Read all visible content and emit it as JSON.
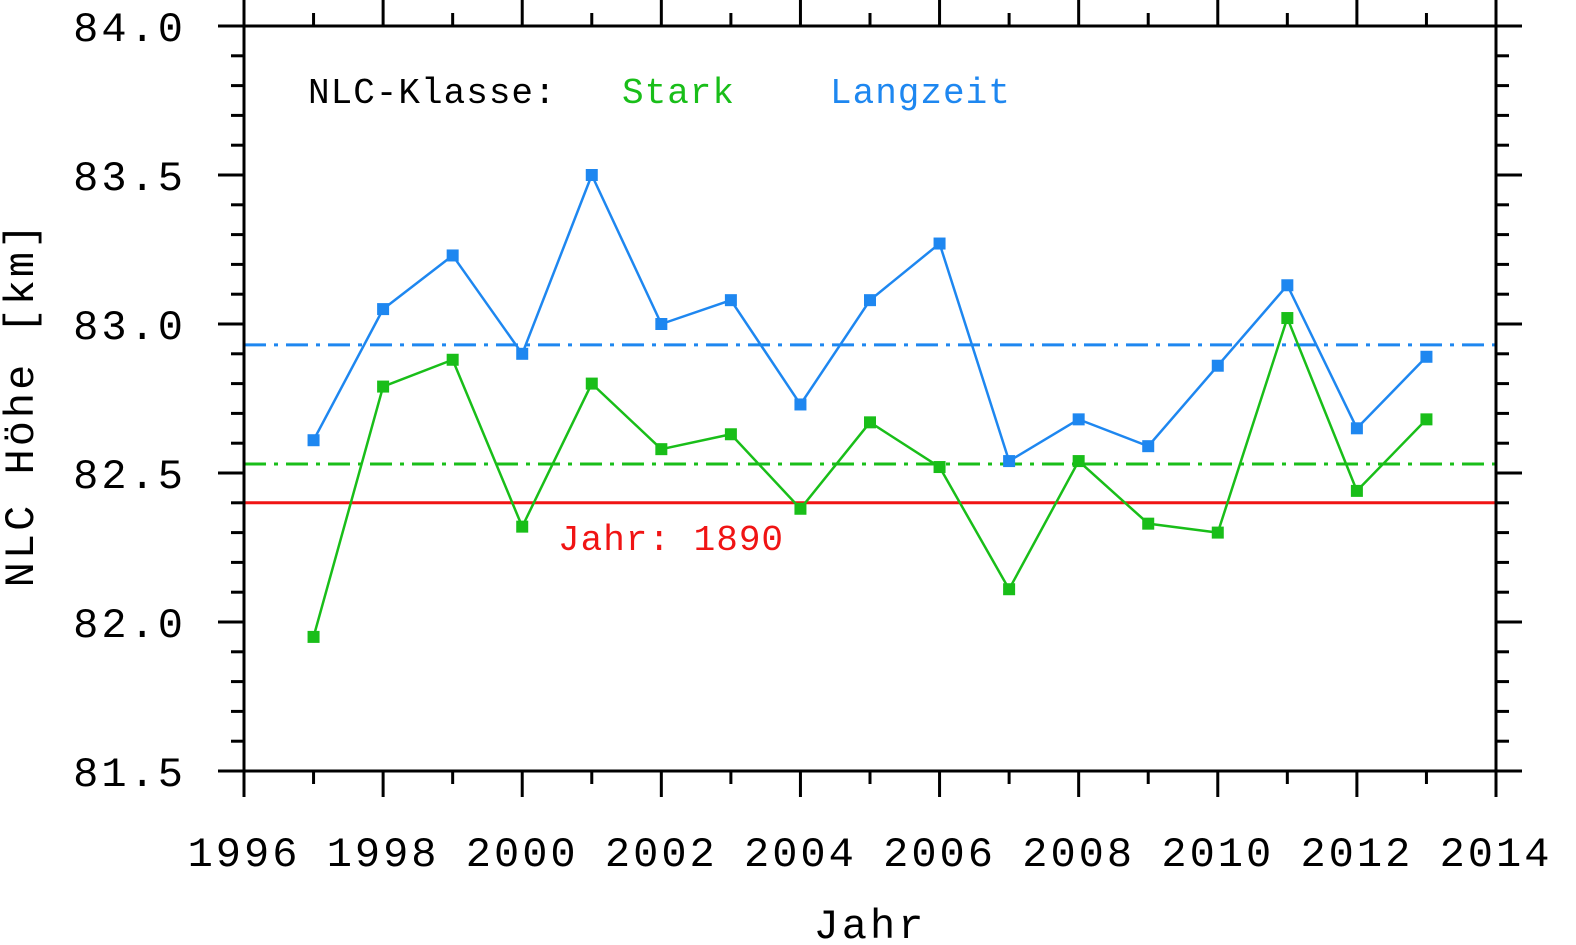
{
  "chart_data": {
    "type": "line",
    "xlabel": "Jahr",
    "ylabel": "NLC Höhe [km]",
    "xlim": [
      1996,
      2014
    ],
    "ylim": [
      81.5,
      84.0
    ],
    "x_ticks": [
      "1996",
      "1998",
      "2000",
      "2002",
      "2004",
      "2006",
      "2008",
      "2010",
      "2012",
      "2014"
    ],
    "y_ticks": [
      "81.5",
      "82.0",
      "82.5",
      "83.0",
      "83.5",
      "84.0"
    ],
    "x": [
      1997,
      1998,
      1999,
      2000,
      2001,
      2002,
      2003,
      2004,
      2005,
      2006,
      2007,
      2008,
      2009,
      2010,
      2011,
      2012,
      2013
    ],
    "series": [
      {
        "name": "Langzeit",
        "color": "#1e87f0",
        "values": [
          82.61,
          83.05,
          83.23,
          82.9,
          83.5,
          83.0,
          83.08,
          82.73,
          83.08,
          83.27,
          82.54,
          82.68,
          82.59,
          82.86,
          83.13,
          82.65,
          82.89
        ]
      },
      {
        "name": "Stark",
        "color": "#19be19",
        "values": [
          81.95,
          82.79,
          82.88,
          82.32,
          82.8,
          82.58,
          82.63,
          82.38,
          82.67,
          82.52,
          82.11,
          82.54,
          82.33,
          82.3,
          83.02,
          82.44,
          82.68
        ]
      }
    ],
    "reference_lines": [
      {
        "series": "Langzeit",
        "value": 82.93,
        "style": "dash-dot",
        "color": "#1e87f0"
      },
      {
        "series": "Stark",
        "value": 82.53,
        "style": "dash-dot",
        "color": "#19be19"
      },
      {
        "label": "Jahr: 1890",
        "value": 82.4,
        "style": "solid",
        "color": "#f01414"
      }
    ],
    "legend": {
      "title": "NLC-Klasse:",
      "entries": [
        "Stark",
        "Langzeit"
      ],
      "placement": "top-left"
    },
    "colors": {
      "axis": "#000000",
      "langzeit": "#1e87f0",
      "stark": "#19be19",
      "reference_1890": "#f01414"
    }
  }
}
